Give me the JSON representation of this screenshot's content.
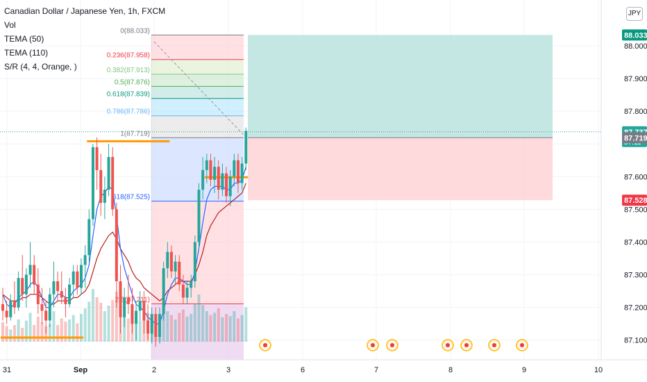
{
  "header": {
    "title": "Canadian Dollar / Japanese Yen, 1h, FXCM",
    "indicators": [
      "Vol",
      "TEMA (50)",
      "TEMA (110)",
      "S/R (4, 4, Orange, )"
    ],
    "currency_button": "JPY"
  },
  "colors": {
    "up": "#26a69a",
    "down": "#ef5350",
    "tema_fast": "#2962ff",
    "tema_slow": "#b71c1c",
    "sr": "#ff9800",
    "profit_zone": "#b2dfdb",
    "loss_zone": "#ffcdd2"
  },
  "chart_data": {
    "type": "candlestick",
    "ylim": [
      87.04,
      88.14
    ],
    "y_ticks": [
      "87.100",
      "87.200",
      "87.300",
      "87.400",
      "87.500",
      "87.600",
      "87.700",
      "87.800",
      "87.900",
      "88.000"
    ],
    "x_ticks": [
      "31",
      "Sep",
      "2",
      "3",
      "6",
      "7",
      "8",
      "9",
      "10"
    ],
    "candles": [
      [
        87.21,
        87.26,
        87.16,
        87.19
      ],
      [
        87.19,
        87.22,
        87.15,
        87.17
      ],
      [
        87.17,
        87.24,
        87.16,
        87.22
      ],
      [
        87.22,
        87.28,
        87.18,
        87.2
      ],
      [
        87.2,
        87.31,
        87.19,
        87.29
      ],
      [
        87.29,
        87.36,
        87.22,
        87.24
      ],
      [
        87.24,
        87.32,
        87.2,
        87.3
      ],
      [
        87.3,
        87.4,
        87.26,
        87.33
      ],
      [
        87.33,
        87.36,
        87.24,
        87.27
      ],
      [
        87.27,
        87.32,
        87.18,
        87.21
      ],
      [
        87.21,
        87.26,
        87.15,
        87.19
      ],
      [
        87.19,
        87.22,
        87.12,
        87.16
      ],
      [
        87.16,
        87.26,
        87.14,
        87.24
      ],
      [
        87.24,
        87.34,
        87.2,
        87.28
      ],
      [
        87.28,
        87.31,
        87.22,
        87.25
      ],
      [
        87.25,
        87.31,
        87.21,
        87.23
      ],
      [
        87.23,
        87.26,
        87.17,
        87.21
      ],
      [
        87.21,
        87.29,
        87.2,
        87.27
      ],
      [
        87.27,
        87.33,
        87.23,
        87.31
      ],
      [
        87.31,
        87.33,
        87.24,
        87.26
      ],
      [
        87.26,
        87.35,
        87.24,
        87.33
      ],
      [
        87.33,
        87.39,
        87.26,
        87.36
      ],
      [
        87.36,
        87.5,
        87.34,
        87.47
      ],
      [
        87.47,
        87.7,
        87.45,
        87.69
      ],
      [
        87.69,
        87.72,
        87.56,
        87.62
      ],
      [
        87.62,
        87.67,
        87.48,
        87.52
      ],
      [
        87.52,
        87.6,
        87.47,
        87.56
      ],
      [
        87.56,
        87.7,
        87.54,
        87.66
      ],
      [
        87.66,
        87.69,
        87.48,
        87.5
      ],
      [
        87.5,
        87.52,
        87.2,
        87.28
      ],
      [
        87.28,
        87.33,
        87.12,
        87.17
      ],
      [
        87.17,
        87.26,
        87.14,
        87.23
      ],
      [
        87.23,
        87.3,
        87.18,
        87.21
      ],
      [
        87.21,
        87.26,
        87.12,
        87.15
      ],
      [
        87.15,
        87.22,
        87.1,
        87.19
      ],
      [
        87.19,
        87.25,
        87.16,
        87.22
      ],
      [
        87.22,
        87.25,
        87.12,
        87.16
      ],
      [
        87.16,
        87.21,
        87.1,
        87.12
      ],
      [
        87.12,
        87.2,
        87.09,
        87.18
      ],
      [
        87.18,
        87.2,
        87.08,
        87.11
      ],
      [
        87.11,
        87.2,
        87.09,
        87.18
      ],
      [
        87.18,
        87.34,
        87.16,
        87.32
      ],
      [
        87.32,
        87.4,
        87.29,
        87.37
      ],
      [
        87.37,
        87.39,
        87.29,
        87.31
      ],
      [
        87.31,
        87.36,
        87.27,
        87.34
      ],
      [
        87.34,
        87.36,
        87.25,
        87.27
      ],
      [
        87.27,
        87.3,
        87.21,
        87.23
      ],
      [
        87.23,
        87.28,
        87.21,
        87.26
      ],
      [
        87.26,
        87.3,
        87.23,
        87.28
      ],
      [
        87.28,
        87.42,
        87.26,
        87.4
      ],
      [
        87.4,
        87.58,
        87.38,
        87.56
      ],
      [
        87.56,
        87.66,
        87.53,
        87.62
      ],
      [
        87.62,
        87.67,
        87.58,
        87.65
      ],
      [
        87.65,
        87.67,
        87.57,
        87.59
      ],
      [
        87.59,
        87.66,
        87.55,
        87.63
      ],
      [
        87.63,
        87.65,
        87.53,
        87.56
      ],
      [
        87.56,
        87.64,
        87.54,
        87.61
      ],
      [
        87.61,
        87.63,
        87.52,
        87.54
      ],
      [
        87.54,
        87.62,
        87.51,
        87.6
      ],
      [
        87.6,
        87.67,
        87.57,
        87.65
      ],
      [
        87.65,
        87.67,
        87.55,
        87.58
      ],
      [
        87.58,
        87.66,
        87.56,
        87.64
      ],
      [
        87.64,
        87.75,
        87.62,
        87.74
      ]
    ],
    "volumes": [
      0.35,
      0.28,
      0.22,
      0.3,
      0.4,
      0.25,
      0.38,
      0.52,
      0.3,
      0.45,
      0.35,
      0.28,
      0.32,
      0.55,
      0.3,
      0.42,
      0.36,
      0.4,
      0.48,
      0.33,
      0.5,
      0.6,
      0.72,
      0.95,
      0.8,
      0.7,
      0.55,
      0.65,
      0.75,
      0.9,
      0.7,
      0.48,
      0.42,
      0.55,
      0.5,
      0.38,
      0.45,
      0.52,
      0.4,
      0.36,
      0.44,
      0.62,
      0.55,
      0.48,
      0.4,
      0.52,
      0.58,
      0.45,
      0.5,
      0.68,
      0.85,
      0.66,
      0.55,
      0.48,
      0.52,
      0.6,
      0.44,
      0.5,
      0.46,
      0.55,
      0.42,
      0.48,
      0.62
    ],
    "tema_fast": [
      87.24,
      87.21,
      87.2,
      87.21,
      87.23,
      87.24,
      87.25,
      87.27,
      87.28,
      87.26,
      87.23,
      87.2,
      87.2,
      87.22,
      87.24,
      87.24,
      87.23,
      87.23,
      87.25,
      87.26,
      87.27,
      87.29,
      87.33,
      87.42,
      87.5,
      87.54,
      87.55,
      87.57,
      87.56,
      87.48,
      87.38,
      87.32,
      87.28,
      87.24,
      87.21,
      87.2,
      87.19,
      87.17,
      87.16,
      87.15,
      87.15,
      87.19,
      87.24,
      87.27,
      87.29,
      87.29,
      87.28,
      87.27,
      87.27,
      87.31,
      87.38,
      87.46,
      87.53,
      87.56,
      87.57,
      87.57,
      87.57,
      87.56,
      87.56,
      87.58,
      87.58,
      87.59,
      87.63
    ],
    "tema_slow": [
      87.24,
      87.23,
      87.22,
      87.22,
      87.22,
      87.23,
      87.23,
      87.24,
      87.24,
      87.24,
      87.23,
      87.22,
      87.21,
      87.21,
      87.22,
      87.22,
      87.22,
      87.22,
      87.23,
      87.23,
      87.24,
      87.25,
      87.27,
      87.31,
      87.35,
      87.38,
      87.4,
      87.42,
      87.43,
      87.41,
      87.38,
      87.36,
      87.34,
      87.31,
      87.29,
      87.28,
      87.26,
      87.25,
      87.24,
      87.23,
      87.22,
      87.23,
      87.25,
      87.26,
      87.27,
      87.28,
      87.28,
      87.28,
      87.28,
      87.3,
      87.33,
      87.37,
      87.42,
      87.45,
      87.47,
      87.49,
      87.5,
      87.51,
      87.52,
      87.53,
      87.54,
      87.55,
      87.58
    ],
    "sr_levels": [
      {
        "value": 87.708,
        "from_index": 22,
        "to_index": 42
      },
      {
        "value": 87.598,
        "from_index": 52,
        "to_index": 62
      },
      {
        "value": 87.108,
        "from_index": 0,
        "to_index": 20
      }
    ],
    "fib_levels": [
      {
        "label": "0(88.033)",
        "value": 88.033,
        "color": "#787b86"
      },
      {
        "label": "0.236(87.958)",
        "value": 87.958,
        "color": "#f23645"
      },
      {
        "label": "0.382(87.913)",
        "value": 87.913,
        "color": "#81c784"
      },
      {
        "label": "0.5(87.876)",
        "value": 87.876,
        "color": "#4caf50"
      },
      {
        "label": "0.618(87.839)",
        "value": 87.839,
        "color": "#089981"
      },
      {
        "label": "0.786(87.786)",
        "value": 87.786,
        "color": "#64b5f6"
      },
      {
        "label": "1(87.719)",
        "value": 87.719,
        "color": "#787b86"
      },
      {
        "label": "618(87.525)",
        "value": 87.525,
        "color": "#2962ff"
      },
      {
        "label": "2.6(87.211)",
        "value": 87.211,
        "color": "#f23645"
      }
    ],
    "position": {
      "entry": 87.719,
      "target": 88.033,
      "stop": 87.528
    },
    "price_labels": [
      {
        "text": "88.033",
        "value": 88.033,
        "bg": "#089981",
        "fg": "#ffffff"
      },
      {
        "text": "87.737",
        "sub": "57:11",
        "value": 87.737,
        "bg": "#26a69a",
        "fg": "#ffffff"
      },
      {
        "text": "87.719",
        "value": 87.719,
        "bg": "#787b86",
        "fg": "#ffffff"
      },
      {
        "text": "87.528",
        "value": 87.528,
        "bg": "#f23645",
        "fg": "#ffffff"
      }
    ],
    "events": [
      "6",
      "7",
      "7",
      "8",
      "8",
      "8",
      "9"
    ]
  }
}
